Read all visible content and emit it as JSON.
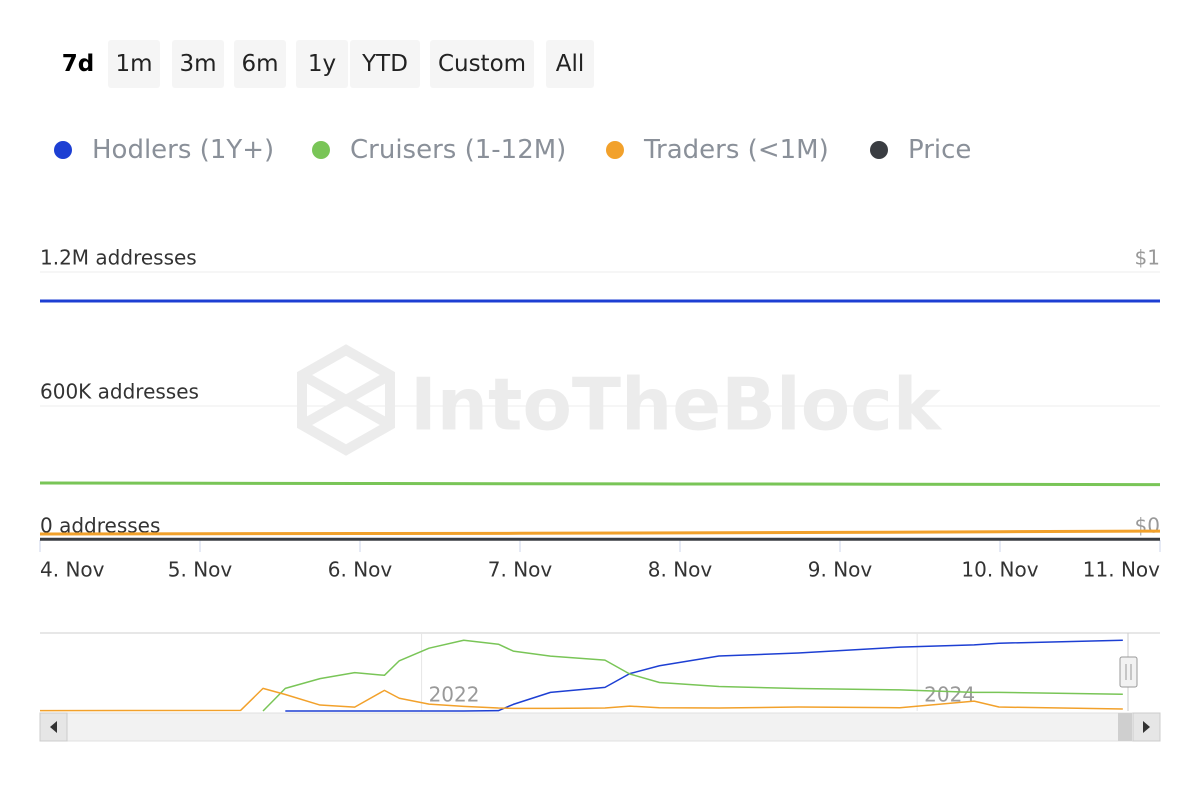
{
  "range_selector": {
    "buttons": [
      "7d",
      "1m",
      "3m",
      "6m",
      "1y",
      "YTD",
      "Custom",
      "All"
    ],
    "selected": 0
  },
  "watermark": "IntoTheBlock",
  "chart_data": [
    {
      "type": "line",
      "categories": [
        "4. Nov",
        "5. Nov",
        "6. Nov",
        "7. Nov",
        "8. Nov",
        "9. Nov",
        "10. Nov",
        "11. Nov"
      ],
      "series": [
        {
          "name": "Hodlers (1Y+)",
          "color": "#1d3fd3",
          "values": [
            1070000,
            1070000,
            1070000,
            1070000,
            1070000,
            1070000,
            1070000,
            1070000
          ]
        },
        {
          "name": "Cruisers (1-12M)",
          "color": "#79c557",
          "values": [
            255000,
            254000,
            253000,
            252000,
            251000,
            250000,
            249000,
            248000
          ]
        },
        {
          "name": "Traders (<1M)",
          "color": "#f2a12b",
          "values": [
            27000,
            28000,
            29000,
            30000,
            32000,
            34000,
            37000,
            40000
          ]
        },
        {
          "name": "Price",
          "color": "#3a3d42",
          "axis": "y2",
          "values": [
            0.003,
            0.003,
            0.003,
            0.003,
            0.003,
            0.003,
            0.003,
            0.003
          ]
        }
      ],
      "ylim": [
        0,
        1200000
      ],
      "yticks": [
        {
          "value": 0,
          "label": "0 addresses"
        },
        {
          "value": 600000,
          "label": "600K addresses"
        },
        {
          "value": 1200000,
          "label": "1.2M addresses"
        }
      ],
      "y2lim": [
        0,
        1
      ],
      "y2ticks": [
        {
          "value": 0,
          "label": "$0"
        },
        {
          "value": 1,
          "label": "$1"
        }
      ],
      "grid": true
    },
    {
      "type": "line",
      "x": [
        2020.46,
        2021.27,
        2021.36,
        2021.45,
        2021.59,
        2021.73,
        2021.85,
        2021.91,
        2022.03,
        2022.17,
        2022.31,
        2022.37,
        2022.52,
        2022.74,
        2022.84,
        2022.96,
        2023.2,
        2023.52,
        2023.93,
        2024.23,
        2024.33,
        2024.83
      ],
      "series": [
        {
          "color": "#1d3fd3",
          "values": [
            null,
            null,
            null,
            0,
            0,
            0,
            0,
            0,
            0,
            0,
            5000,
            100000,
            282000,
            357000,
            565000,
            684000,
            832000,
            877000,
            966000,
            1000000,
            1025000,
            1070000
          ]
        },
        {
          "color": "#79c557",
          "values": [
            null,
            null,
            0,
            342000,
            490000,
            580000,
            540000,
            760000,
            950000,
            1070000,
            1010000,
            906000,
            830000,
            770000,
            560000,
            431000,
            370000,
            340000,
            320000,
            282000,
            282000,
            253000
          ]
        },
        {
          "color": "#f2a12b",
          "values": [
            5000,
            10000,
            342000,
            250000,
            90000,
            59000,
            312000,
            193000,
            104000,
            70000,
            45000,
            40000,
            40000,
            45000,
            74000,
            50000,
            45000,
            60000,
            50000,
            149000,
            60000,
            30000
          ]
        }
      ],
      "xlim": [
        2020.46,
        2024.98
      ],
      "xticks": [
        2022,
        2024
      ],
      "ylim": [
        0,
        1180000
      ]
    }
  ]
}
